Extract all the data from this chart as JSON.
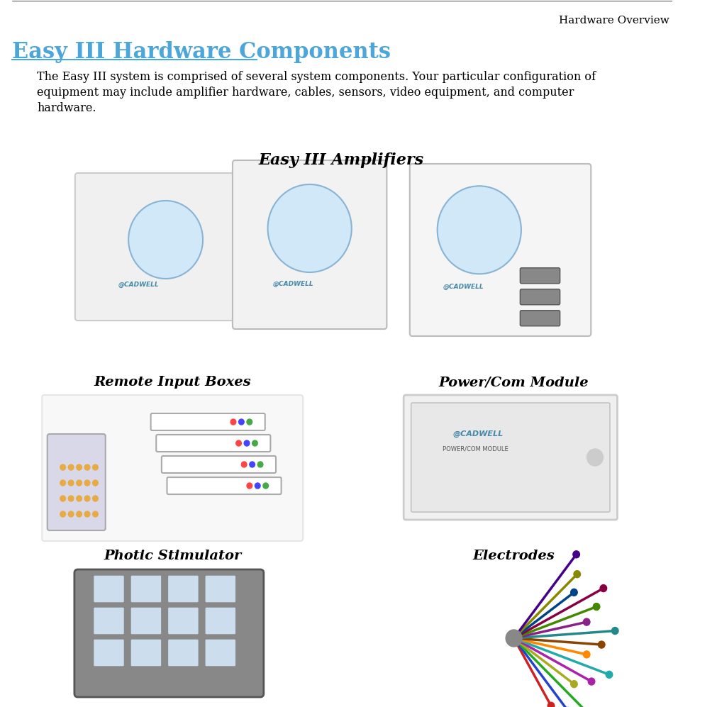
{
  "header_text": "Hardware Overview",
  "title": "Easy III Hardware Components",
  "title_color": "#4da6d9",
  "body_text": "The Easy III system is comprised of several system components. Your particular configuration of\nequipment may include amplifier hardware, cables, sensors, video equipment, and computer\nhardware.",
  "section_label_amplifiers": "Easy III Amplifiers",
  "section_label_remote": "Remote Input Boxes",
  "section_label_power": "Power/Com Module",
  "section_label_photic": "Photic Stimulator",
  "section_label_electrodes": "Electrodes",
  "bg_color": "#ffffff",
  "header_color": "#000000",
  "body_color": "#000000",
  "label_color": "#000000",
  "figsize": [
    10.11,
    9.97
  ],
  "dpi": 100
}
